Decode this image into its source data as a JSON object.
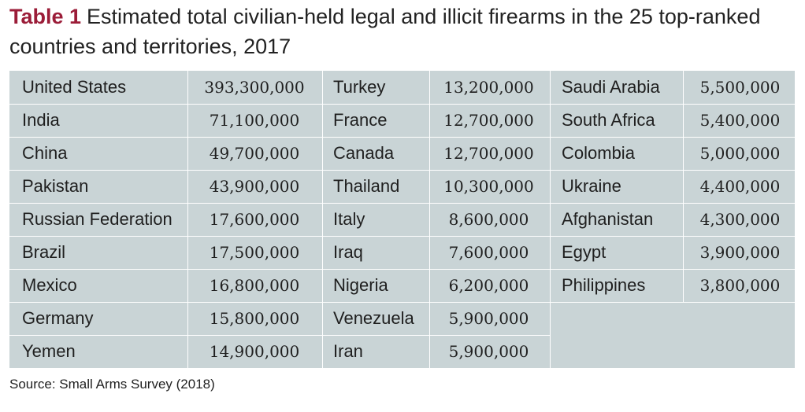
{
  "title": {
    "lead": "Table 1",
    "text": "Estimated total civilian-held legal and illicit firearms in the 25 top-ranked countries and territories, 2017"
  },
  "columns": [
    {
      "rows": [
        {
          "country": "United States",
          "value": "393,300,000"
        },
        {
          "country": "India",
          "value": "71,100,000"
        },
        {
          "country": "China",
          "value": "49,700,000"
        },
        {
          "country": "Pakistan",
          "value": "43,900,000"
        },
        {
          "country": "Russian Federation",
          "value": "17,600,000"
        },
        {
          "country": "Brazil",
          "value": "17,500,000"
        },
        {
          "country": "Mexico",
          "value": "16,800,000"
        },
        {
          "country": "Germany",
          "value": "15,800,000"
        },
        {
          "country": "Yemen",
          "value": "14,900,000"
        }
      ]
    },
    {
      "rows": [
        {
          "country": "Turkey",
          "value": "13,200,000"
        },
        {
          "country": "France",
          "value": "12,700,000"
        },
        {
          "country": "Canada",
          "value": "12,700,000"
        },
        {
          "country": "Thailand",
          "value": "10,300,000"
        },
        {
          "country": "Italy",
          "value": "8,600,000"
        },
        {
          "country": "Iraq",
          "value": "7,600,000"
        },
        {
          "country": "Nigeria",
          "value": "6,200,000"
        },
        {
          "country": "Venezuela",
          "value": "5,900,000"
        },
        {
          "country": "Iran",
          "value": "5,900,000"
        }
      ]
    },
    {
      "rows": [
        {
          "country": "Saudi Arabia",
          "value": "5,500,000"
        },
        {
          "country": "South Africa",
          "value": "5,400,000"
        },
        {
          "country": "Colombia",
          "value": "5,000,000"
        },
        {
          "country": "Ukraine",
          "value": "4,400,000"
        },
        {
          "country": "Afghanistan",
          "value": "4,300,000"
        },
        {
          "country": "Egypt",
          "value": "3,900,000"
        },
        {
          "country": "Philippines",
          "value": "3,800,000"
        }
      ]
    }
  ],
  "source": "Source: Small Arms Survey (2018)",
  "colors": {
    "table_bg": "#c9d4d6",
    "title_accent": "#9b1c38",
    "grid": "#ffffff"
  }
}
